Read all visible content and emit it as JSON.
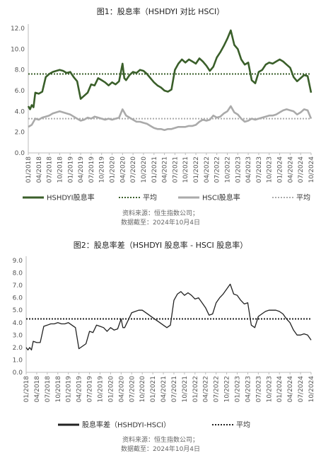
{
  "chart_data": [
    {
      "type": "line",
      "title": "图1：股息率（HSHDYI 对比 HSCI）",
      "xlabel": "",
      "ylabel": "",
      "ylim": [
        0,
        12
      ],
      "yticks": [
        "0.0",
        "2.0",
        "4.0",
        "6.0",
        "8.0",
        "10.0",
        "12.0"
      ],
      "xticks": [
        "01/2018",
        "04/2018",
        "07/2018",
        "10/2018",
        "01/2019",
        "04/2019",
        "07/2019",
        "10/2019",
        "01/2020",
        "04/2020",
        "07/2020",
        "10/2020",
        "01/2021",
        "04/2021",
        "07/2021",
        "10/2021",
        "01/2022",
        "04/2022",
        "07/2022",
        "10/2022",
        "01/2023",
        "04/2023",
        "07/2023",
        "10/2023",
        "01/2024",
        "04/2024",
        "07/2024",
        "10/2024"
      ],
      "x_range": [
        "2018-01",
        "2024-10"
      ],
      "legend_position": "bottom",
      "series": [
        {
          "name": "HSHDYI股息率",
          "color": "#3a5f2a",
          "style": "solid",
          "points": [
            [
              0,
              4.5
            ],
            [
              0.5,
              4.2
            ],
            [
              1,
              4.6
            ],
            [
              1.5,
              4.4
            ],
            [
              2,
              5.8
            ],
            [
              3,
              5.7
            ],
            [
              4,
              5.9
            ],
            [
              5,
              7.3
            ],
            [
              6,
              7.6
            ],
            [
              7,
              7.8
            ],
            [
              8,
              7.9
            ],
            [
              9,
              8.0
            ],
            [
              10,
              7.9
            ],
            [
              11,
              7.7
            ],
            [
              12,
              7.8
            ],
            [
              13,
              7.3
            ],
            [
              14,
              6.9
            ],
            [
              15,
              5.2
            ],
            [
              16,
              5.5
            ],
            [
              17,
              5.8
            ],
            [
              18,
              6.6
            ],
            [
              19,
              6.5
            ],
            [
              20,
              7.2
            ],
            [
              21,
              7.0
            ],
            [
              22,
              6.8
            ],
            [
              23,
              6.5
            ],
            [
              24,
              6.8
            ],
            [
              25,
              6.6
            ],
            [
              26,
              6.9
            ],
            [
              27,
              8.6
            ],
            [
              27.5,
              7.2
            ],
            [
              28,
              7.0
            ],
            [
              29,
              7.5
            ],
            [
              30,
              7.8
            ],
            [
              31,
              7.7
            ],
            [
              32,
              8.0
            ],
            [
              33,
              7.9
            ],
            [
              34,
              7.6
            ],
            [
              35,
              7.2
            ],
            [
              36,
              6.8
            ],
            [
              37,
              6.5
            ],
            [
              38,
              6.3
            ],
            [
              39,
              6.0
            ],
            [
              40,
              5.9
            ],
            [
              41,
              6.1
            ],
            [
              42,
              8.0
            ],
            [
              43,
              8.6
            ],
            [
              44,
              9.0
            ],
            [
              45,
              8.7
            ],
            [
              46,
              9.0
            ],
            [
              47,
              8.8
            ],
            [
              48,
              8.6
            ],
            [
              49,
              9.1
            ],
            [
              50,
              8.8
            ],
            [
              51,
              8.4
            ],
            [
              52,
              7.9
            ],
            [
              53,
              8.3
            ],
            [
              54,
              9.2
            ],
            [
              55,
              9.7
            ],
            [
              56,
              10.3
            ],
            [
              57,
              11.0
            ],
            [
              58,
              11.8
            ],
            [
              59,
              10.4
            ],
            [
              60,
              10.0
            ],
            [
              61,
              9.0
            ],
            [
              62,
              8.5
            ],
            [
              63,
              8.7
            ],
            [
              64,
              7.0
            ],
            [
              65,
              6.7
            ],
            [
              66,
              7.8
            ],
            [
              67,
              8.0
            ],
            [
              68,
              8.5
            ],
            [
              69,
              8.7
            ],
            [
              70,
              8.6
            ],
            [
              71,
              8.8
            ],
            [
              72,
              9.0
            ],
            [
              73,
              8.8
            ],
            [
              74,
              8.5
            ],
            [
              75,
              8.2
            ],
            [
              76,
              7.3
            ],
            [
              77,
              6.9
            ],
            [
              78,
              7.2
            ],
            [
              79,
              7.5
            ],
            [
              80,
              7.4
            ],
            [
              81,
              5.8
            ]
          ]
        },
        {
          "name": "平均",
          "color": "#3a5f2a",
          "style": "dotted",
          "value": 7.6
        },
        {
          "name": "HSCI股息率",
          "color": "#aaaaaa",
          "style": "solid",
          "points": [
            [
              0,
              2.5
            ],
            [
              1,
              2.7
            ],
            [
              2,
              3.3
            ],
            [
              3,
              3.2
            ],
            [
              4,
              3.4
            ],
            [
              5,
              3.5
            ],
            [
              6,
              3.6
            ],
            [
              7,
              3.8
            ],
            [
              8,
              3.9
            ],
            [
              9,
              4.0
            ],
            [
              10,
              3.9
            ],
            [
              11,
              3.8
            ],
            [
              12,
              3.7
            ],
            [
              13,
              3.5
            ],
            [
              14,
              3.3
            ],
            [
              15,
              3.1
            ],
            [
              16,
              3.2
            ],
            [
              17,
              3.4
            ],
            [
              18,
              3.3
            ],
            [
              19,
              3.5
            ],
            [
              20,
              3.4
            ],
            [
              21,
              3.3
            ],
            [
              22,
              3.2
            ],
            [
              23,
              3.3
            ],
            [
              24,
              3.2
            ],
            [
              25,
              3.3
            ],
            [
              26,
              3.4
            ],
            [
              27,
              4.2
            ],
            [
              28,
              3.6
            ],
            [
              29,
              3.4
            ],
            [
              30,
              3.2
            ],
            [
              31,
              3.0
            ],
            [
              32,
              3.0
            ],
            [
              33,
              2.9
            ],
            [
              34,
              2.8
            ],
            [
              35,
              2.6
            ],
            [
              36,
              2.4
            ],
            [
              37,
              2.3
            ],
            [
              38,
              2.3
            ],
            [
              39,
              2.2
            ],
            [
              40,
              2.3
            ],
            [
              41,
              2.3
            ],
            [
              42,
              2.4
            ],
            [
              43,
              2.5
            ],
            [
              44,
              2.5
            ],
            [
              45,
              2.5
            ],
            [
              46,
              2.6
            ],
            [
              47,
              2.6
            ],
            [
              48,
              2.7
            ],
            [
              49,
              3.0
            ],
            [
              50,
              3.2
            ],
            [
              51,
              3.1
            ],
            [
              52,
              3.2
            ],
            [
              53,
              3.6
            ],
            [
              54,
              3.4
            ],
            [
              55,
              3.5
            ],
            [
              56,
              3.8
            ],
            [
              57,
              4.0
            ],
            [
              58,
              4.5
            ],
            [
              59,
              3.9
            ],
            [
              60,
              3.7
            ],
            [
              61,
              3.3
            ],
            [
              62,
              3.0
            ],
            [
              63,
              3.1
            ],
            [
              64,
              3.3
            ],
            [
              65,
              3.2
            ],
            [
              66,
              3.3
            ],
            [
              67,
              3.4
            ],
            [
              68,
              3.5
            ],
            [
              69,
              3.6
            ],
            [
              70,
              3.6
            ],
            [
              71,
              3.7
            ],
            [
              72,
              3.9
            ],
            [
              73,
              4.1
            ],
            [
              74,
              4.2
            ],
            [
              75,
              4.1
            ],
            [
              76,
              4.0
            ],
            [
              77,
              3.7
            ],
            [
              78,
              3.9
            ],
            [
              79,
              4.2
            ],
            [
              80,
              4.1
            ],
            [
              81,
              3.3
            ]
          ]
        },
        {
          "name": "平均",
          "color": "#aaaaaa",
          "style": "dotted",
          "value": 3.3
        }
      ],
      "source_lines": [
        "资料来源：恒生指数公司；",
        "数据截至：2024年10月4日"
      ]
    },
    {
      "type": "line",
      "title": "图2：股息率差（HSHDYI 股息率 - HSCI 股息率）",
      "xlabel": "",
      "ylabel": "",
      "ylim": [
        0,
        9
      ],
      "yticks": [
        "0.0",
        "1.0",
        "2.0",
        "3.0",
        "4.0",
        "5.0",
        "6.0",
        "7.0",
        "8.0",
        "9.0"
      ],
      "xticks": [
        "01/2018",
        "04/2018",
        "07/2018",
        "10/2018",
        "01/2019",
        "04/2019",
        "07/2019",
        "10/2019",
        "01/2020",
        "04/2020",
        "07/2020",
        "10/2020",
        "01/2021",
        "04/2021",
        "07/2021",
        "10/2021",
        "01/2022",
        "04/2022",
        "07/2022",
        "10/2022",
        "01/2023",
        "04/2023",
        "07/2023",
        "10/2023",
        "01/2024",
        "04/2024",
        "07/2024",
        "10/2024"
      ],
      "x_range": [
        "2018-01",
        "2024-10"
      ],
      "legend_position": "bottom",
      "series": [
        {
          "name": "股息率差（HSHDYI-HSCI）",
          "color": "#222222",
          "style": "solid",
          "points": [
            [
              0,
              2.0
            ],
            [
              0.5,
              1.8
            ],
            [
              1,
              2.0
            ],
            [
              1.5,
              1.8
            ],
            [
              2,
              2.5
            ],
            [
              3,
              2.4
            ],
            [
              4,
              2.4
            ],
            [
              5,
              3.7
            ],
            [
              6,
              3.8
            ],
            [
              7,
              3.9
            ],
            [
              8,
              3.9
            ],
            [
              9,
              4.0
            ],
            [
              10,
              3.9
            ],
            [
              11,
              3.9
            ],
            [
              12,
              4.0
            ],
            [
              13,
              3.8
            ],
            [
              14,
              3.6
            ],
            [
              15,
              1.9
            ],
            [
              16,
              2.1
            ],
            [
              17,
              2.3
            ],
            [
              18,
              3.3
            ],
            [
              19,
              3.2
            ],
            [
              20,
              3.8
            ],
            [
              21,
              3.7
            ],
            [
              22,
              3.6
            ],
            [
              23,
              3.3
            ],
            [
              24,
              3.6
            ],
            [
              25,
              3.4
            ],
            [
              26,
              3.5
            ],
            [
              27,
              4.3
            ],
            [
              27.5,
              3.6
            ],
            [
              28,
              3.6
            ],
            [
              29,
              4.2
            ],
            [
              30,
              4.8
            ],
            [
              31,
              4.9
            ],
            [
              32,
              5.0
            ],
            [
              33,
              5.0
            ],
            [
              34,
              4.8
            ],
            [
              35,
              4.6
            ],
            [
              36,
              4.4
            ],
            [
              37,
              4.2
            ],
            [
              38,
              4.0
            ],
            [
              39,
              3.8
            ],
            [
              40,
              3.6
            ],
            [
              41,
              3.8
            ],
            [
              42,
              5.8
            ],
            [
              43,
              6.3
            ],
            [
              44,
              6.5
            ],
            [
              45,
              6.2
            ],
            [
              46,
              6.4
            ],
            [
              47,
              6.2
            ],
            [
              48,
              5.9
            ],
            [
              49,
              6.0
            ],
            [
              50,
              5.6
            ],
            [
              51,
              5.2
            ],
            [
              52,
              4.6
            ],
            [
              53,
              4.7
            ],
            [
              54,
              5.6
            ],
            [
              55,
              6.0
            ],
            [
              56,
              6.3
            ],
            [
              57,
              6.7
            ],
            [
              58,
              7.1
            ],
            [
              59,
              6.3
            ],
            [
              60,
              6.2
            ],
            [
              61,
              5.8
            ],
            [
              62,
              5.5
            ],
            [
              63,
              5.6
            ],
            [
              64,
              3.8
            ],
            [
              65,
              3.6
            ],
            [
              66,
              4.5
            ],
            [
              67,
              4.7
            ],
            [
              68,
              4.9
            ],
            [
              69,
              5.0
            ],
            [
              70,
              5.0
            ],
            [
              71,
              5.0
            ],
            [
              72,
              4.9
            ],
            [
              73,
              4.7
            ],
            [
              74,
              4.3
            ],
            [
              75,
              4.0
            ],
            [
              76,
              3.4
            ],
            [
              77,
              3.0
            ],
            [
              78,
              3.0
            ],
            [
              79,
              3.1
            ],
            [
              80,
              3.0
            ],
            [
              81,
              2.6
            ]
          ]
        },
        {
          "name": "平均",
          "color": "#222222",
          "style": "dotted",
          "value": 4.3
        }
      ],
      "source_lines": [
        "资料来源：恒生指数公司；",
        "数据截至：2024年10月4日"
      ]
    }
  ]
}
